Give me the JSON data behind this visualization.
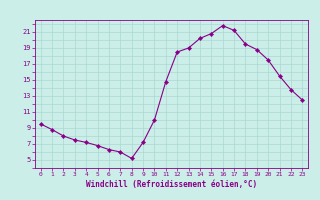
{
  "x": [
    0,
    1,
    2,
    3,
    4,
    5,
    6,
    7,
    8,
    9,
    10,
    11,
    12,
    13,
    14,
    15,
    16,
    17,
    18,
    19,
    20,
    21,
    22,
    23
  ],
  "y": [
    9.5,
    8.8,
    8.0,
    7.5,
    7.2,
    6.8,
    6.3,
    6.0,
    5.2,
    7.2,
    10.0,
    14.8,
    18.5,
    19.0,
    20.2,
    20.8,
    21.8,
    21.2,
    19.5,
    18.8,
    17.5,
    15.5,
    13.8,
    12.5
  ],
  "line_color": "#880088",
  "marker": "D",
  "marker_size": 2.2,
  "bg_color": "#cceee8",
  "grid_color": "#aad8d2",
  "xlabel": "Windchill (Refroidissement éolien,°C)",
  "xlabel_color": "#880088",
  "tick_color": "#880088",
  "xlim": [
    -0.5,
    23.5
  ],
  "ylim": [
    4.0,
    22.5
  ],
  "yticks": [
    5,
    7,
    9,
    11,
    13,
    15,
    17,
    19,
    21
  ],
  "xticks": [
    0,
    1,
    2,
    3,
    4,
    5,
    6,
    7,
    8,
    9,
    10,
    11,
    12,
    13,
    14,
    15,
    16,
    17,
    18,
    19,
    20,
    21,
    22,
    23
  ]
}
